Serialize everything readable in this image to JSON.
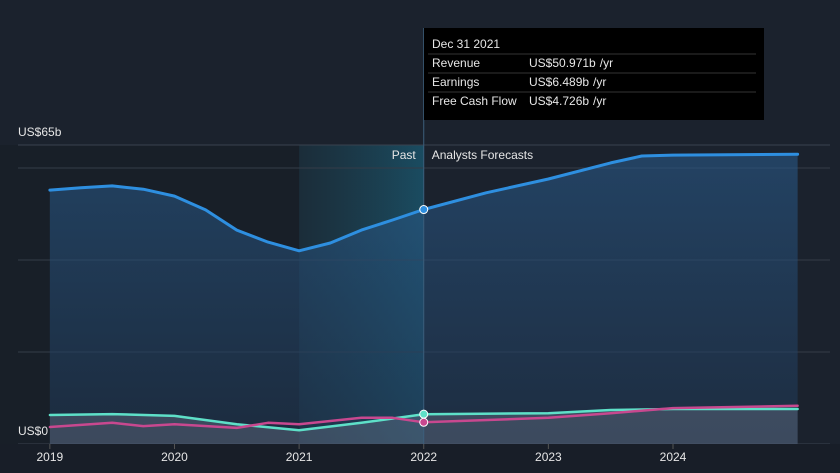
{
  "chart_data": {
    "type": "line",
    "ylim": [
      0,
      65
    ],
    "yticks": [
      {
        "value": 0,
        "label": "US$0"
      },
      {
        "value": 65,
        "label": "US$65b"
      }
    ],
    "gridlines": [
      20,
      40,
      60
    ],
    "xlim": [
      2018.6,
      2025.34
    ],
    "xticks": [
      2019,
      2020,
      2021,
      2022,
      2023,
      2024
    ],
    "past_label": "Past",
    "forecast_label": "Analysts Forecasts",
    "past_range": [
      2021,
      2022
    ],
    "series": [
      {
        "name": "Revenue",
        "color": "#2e8fe0",
        "x": [
          2019,
          2019.25,
          2019.5,
          2019.75,
          2020,
          2020.25,
          2020.5,
          2020.75,
          2021,
          2021.25,
          2021.5,
          2021.75,
          2022,
          2022.5,
          2023,
          2023.5,
          2023.75,
          2024,
          2025
        ],
        "values": [
          55.2,
          55.7,
          56.1,
          55.4,
          53.9,
          50.9,
          46.5,
          43.9,
          42.0,
          43.7,
          46.5,
          48.7,
          50.971,
          54.6,
          57.6,
          61.1,
          62.6,
          62.8,
          63.0
        ]
      },
      {
        "name": "Earnings",
        "color": "#5ee0c8",
        "x": [
          2019,
          2019.5,
          2020,
          2020.5,
          2021,
          2021.5,
          2022,
          2023,
          2023.5,
          2024,
          2025
        ],
        "values": [
          6.3,
          6.5,
          6.1,
          4.3,
          3.0,
          4.6,
          6.489,
          6.7,
          7.4,
          7.6,
          7.6
        ]
      },
      {
        "name": "Free Cash Flow",
        "color": "#c8488f",
        "x": [
          2019,
          2019.5,
          2019.75,
          2020,
          2020.5,
          2020.75,
          2021,
          2021.5,
          2021.75,
          2022,
          2023,
          2023.5,
          2024,
          2025
        ],
        "values": [
          3.7,
          4.6,
          3.9,
          4.3,
          3.5,
          4.6,
          4.3,
          5.7,
          5.7,
          4.726,
          5.7,
          6.7,
          7.8,
          8.3
        ]
      }
    ],
    "tooltip": {
      "title": "Dec 31 2021",
      "x": 2022,
      "rows": [
        {
          "label": "Revenue",
          "value": "US$50.971b",
          "unit": "/yr"
        },
        {
          "label": "Earnings",
          "value": "US$6.489b",
          "unit": "/yr"
        },
        {
          "label": "Free Cash Flow",
          "value": "US$4.726b",
          "unit": "/yr"
        }
      ]
    }
  }
}
